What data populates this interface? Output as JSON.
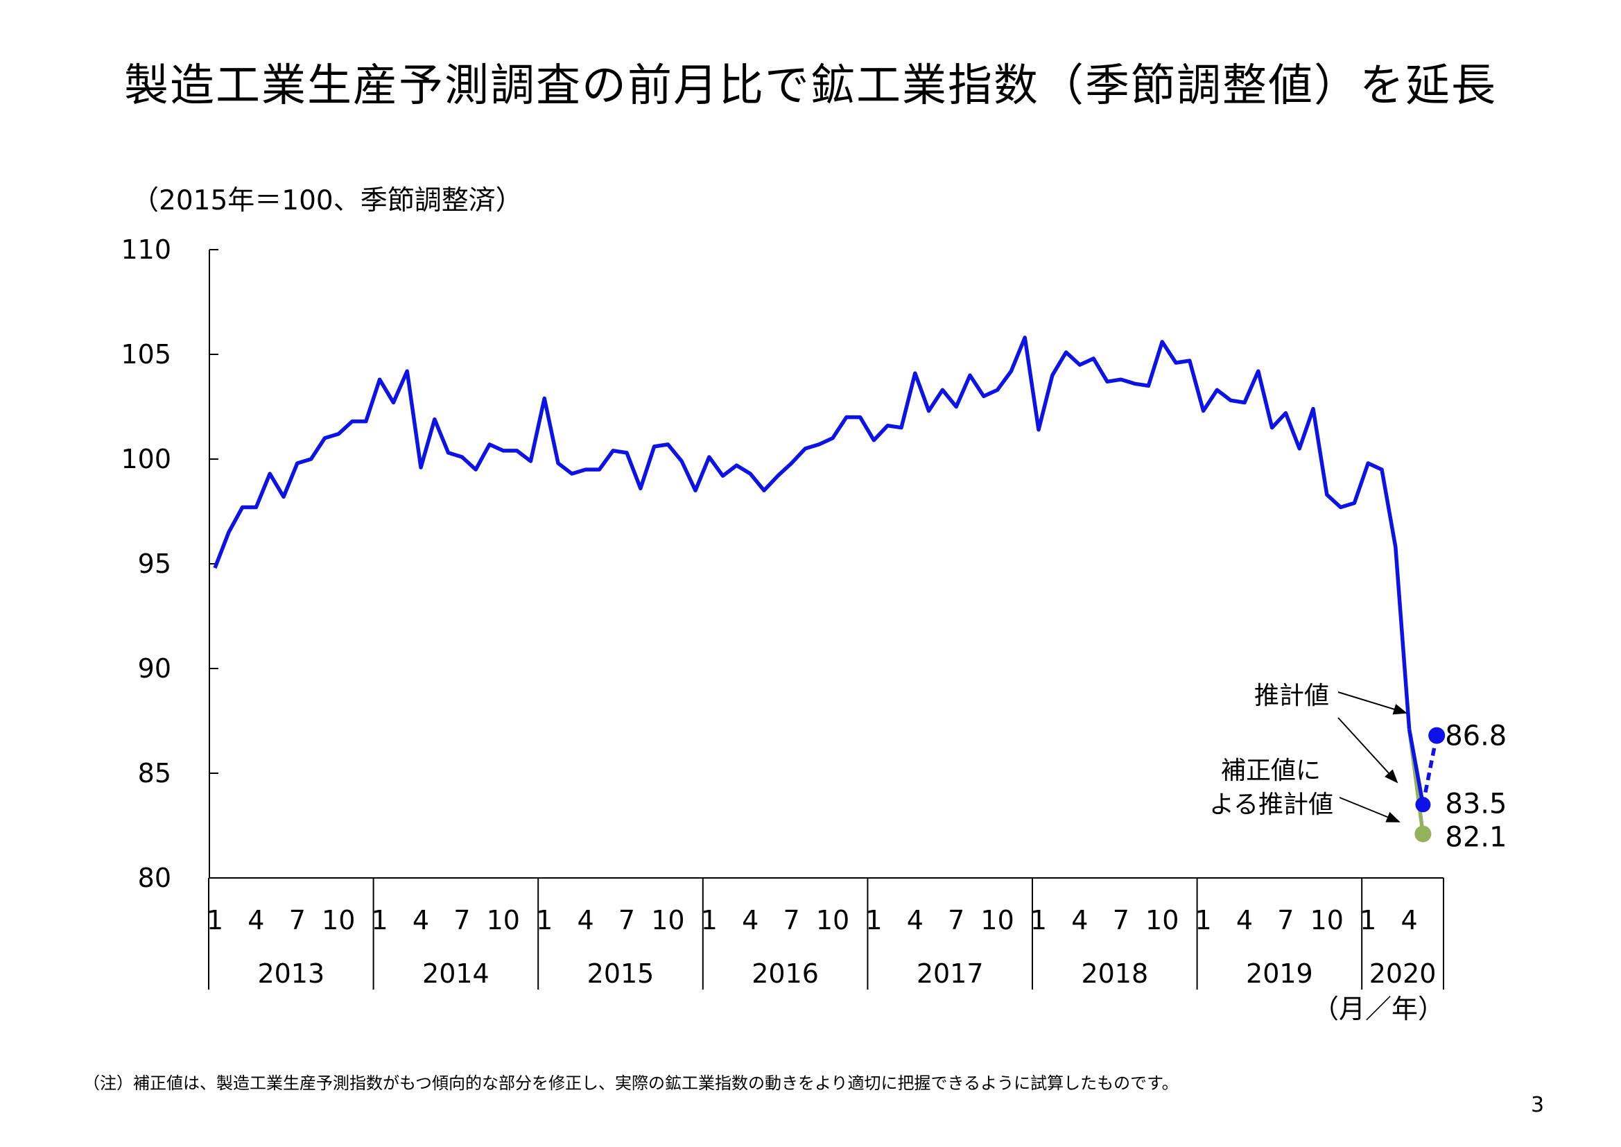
{
  "title": "製造工業生産予測調査の前月比で鉱工業指数（季節調整値）を延長",
  "unit_label": "（2015年＝100、季節調整済）",
  "axis_unit": "（月／年）",
  "footnote": "（注）補正値は、製造工業生産予測指数がもつ傾向的な部分を修正し、実際の鉱工業指数の動きをより適切に把握できるように試算したものです。",
  "page_number": "3",
  "colors": {
    "actual": "#0d12e6",
    "forecast": "#0d12e6",
    "corrected": "#93b25a"
  },
  "chart_data": {
    "type": "line",
    "ylim": [
      80,
      110
    ],
    "yticks": [
      80,
      85,
      90,
      95,
      100,
      105,
      110
    ],
    "month_tick_labels": [
      "1",
      "4",
      "7",
      "10"
    ],
    "years": [
      "2013",
      "2014",
      "2015",
      "2016",
      "2017",
      "2018",
      "2019",
      "2020"
    ],
    "grid": false,
    "series": [
      {
        "values": [
          94.8,
          96.5,
          97.7,
          97.7,
          99.3,
          98.2,
          99.8,
          100.0,
          101.0,
          101.2,
          101.8,
          101.8,
          103.8,
          102.7,
          104.2,
          99.6,
          101.9,
          100.3,
          100.1,
          99.5,
          100.7,
          100.4,
          100.4,
          99.9,
          102.9,
          99.8,
          99.3,
          99.5,
          99.5,
          100.4,
          100.3,
          98.6,
          100.6,
          100.7,
          99.9,
          98.5,
          100.1,
          99.2,
          99.7,
          99.3,
          98.5,
          99.2,
          99.8,
          100.5,
          100.7,
          101.0,
          102.0,
          102.0,
          100.9,
          101.6,
          101.5,
          104.1,
          102.3,
          103.3,
          102.5,
          104.0,
          103.0,
          103.3,
          104.2,
          105.8,
          101.4,
          104.0,
          105.1,
          104.5,
          104.8,
          103.7,
          103.8,
          103.6,
          103.5,
          105.6,
          104.6,
          104.7,
          102.3,
          103.3,
          102.8,
          102.7,
          104.2,
          101.5,
          102.2,
          100.5,
          102.4,
          98.3,
          97.7,
          97.9,
          99.8,
          99.5,
          95.8,
          87.1
        ]
      }
    ],
    "forecast": {
      "values": [
        83.5,
        86.8
      ],
      "labels": [
        "83.5",
        "86.8"
      ]
    },
    "corrected_forecast": {
      "values": [
        82.1
      ],
      "labels": [
        "82.1"
      ]
    },
    "annotations": [
      {
        "text": "推計値"
      },
      {
        "text": "補正値に"
      },
      {
        "text": "よる推計値"
      }
    ]
  }
}
